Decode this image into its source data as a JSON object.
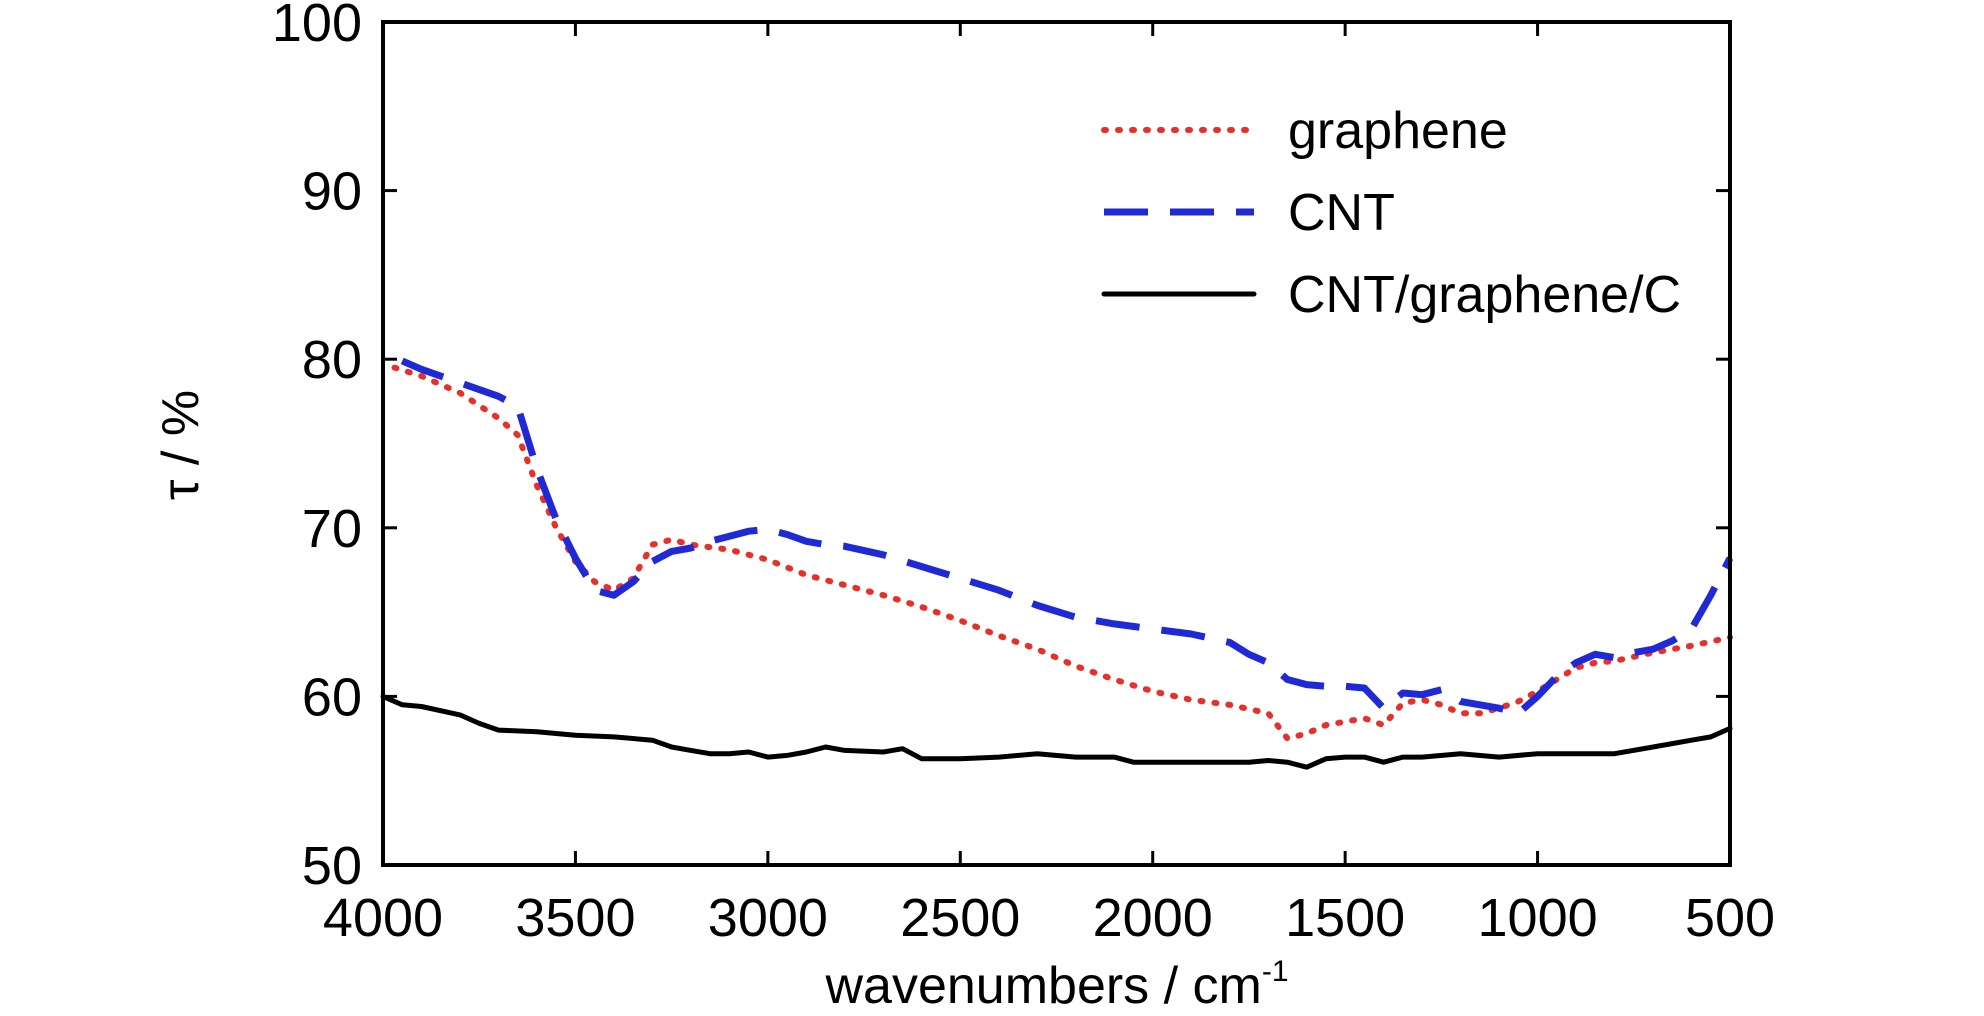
{
  "chart_data": {
    "type": "line",
    "title": "",
    "xlabel": "wavenumbers / cm",
    "xlabel_superscript": "-1",
    "ylabel": "τ / %",
    "xlim": [
      4000,
      500
    ],
    "ylim": [
      50,
      100
    ],
    "x_reversed": true,
    "x_ticks": [
      4000,
      3500,
      3000,
      2500,
      2000,
      1500,
      1000,
      500
    ],
    "y_ticks": [
      50,
      60,
      70,
      80,
      90,
      100
    ],
    "grid": false,
    "legend_position": "top-right",
    "series": [
      {
        "name": "graphene",
        "color": "#e8302a",
        "style": "dotted",
        "points": [
          [
            3970,
            79.5
          ],
          [
            3900,
            79.0
          ],
          [
            3800,
            78.0
          ],
          [
            3700,
            76.5
          ],
          [
            3650,
            75.5
          ],
          [
            3600,
            72.5
          ],
          [
            3550,
            70.0
          ],
          [
            3500,
            68.0
          ],
          [
            3450,
            66.8
          ],
          [
            3400,
            66.3
          ],
          [
            3350,
            67.0
          ],
          [
            3300,
            69.0
          ],
          [
            3250,
            69.3
          ],
          [
            3200,
            69.0
          ],
          [
            3100,
            68.7
          ],
          [
            3000,
            68.1
          ],
          [
            2900,
            67.2
          ],
          [
            2800,
            66.6
          ],
          [
            2700,
            66.0
          ],
          [
            2600,
            65.3
          ],
          [
            2500,
            64.5
          ],
          [
            2400,
            63.6
          ],
          [
            2300,
            62.8
          ],
          [
            2200,
            61.8
          ],
          [
            2100,
            61.0
          ],
          [
            2000,
            60.3
          ],
          [
            1900,
            59.8
          ],
          [
            1800,
            59.5
          ],
          [
            1700,
            59.0
          ],
          [
            1650,
            57.5
          ],
          [
            1600,
            57.8
          ],
          [
            1550,
            58.3
          ],
          [
            1450,
            58.7
          ],
          [
            1400,
            58.3
          ],
          [
            1350,
            59.6
          ],
          [
            1300,
            59.8
          ],
          [
            1250,
            59.5
          ],
          [
            1200,
            59.0
          ],
          [
            1150,
            59.0
          ],
          [
            1100,
            59.3
          ],
          [
            1050,
            59.7
          ],
          [
            1000,
            60.3
          ],
          [
            950,
            61.0
          ],
          [
            900,
            61.7
          ],
          [
            850,
            62.0
          ],
          [
            800,
            62.1
          ],
          [
            700,
            62.6
          ],
          [
            600,
            63.0
          ],
          [
            500,
            63.5
          ]
        ]
      },
      {
        "name": "CNT",
        "color": "#1f2ad6",
        "style": "dashed",
        "points": [
          [
            3950,
            79.9
          ],
          [
            3900,
            79.4
          ],
          [
            3800,
            78.6
          ],
          [
            3700,
            77.8
          ],
          [
            3650,
            77.2
          ],
          [
            3600,
            73.5
          ],
          [
            3550,
            70.5
          ],
          [
            3500,
            68.2
          ],
          [
            3450,
            66.3
          ],
          [
            3400,
            66.0
          ],
          [
            3350,
            66.8
          ],
          [
            3300,
            68.0
          ],
          [
            3250,
            68.6
          ],
          [
            3200,
            68.8
          ],
          [
            3150,
            69.2
          ],
          [
            3100,
            69.5
          ],
          [
            3050,
            69.8
          ],
          [
            3000,
            69.9
          ],
          [
            2950,
            69.6
          ],
          [
            2900,
            69.2
          ],
          [
            2850,
            69.0
          ],
          [
            2800,
            68.9
          ],
          [
            2700,
            68.4
          ],
          [
            2600,
            67.7
          ],
          [
            2500,
            67.0
          ],
          [
            2400,
            66.3
          ],
          [
            2300,
            65.4
          ],
          [
            2200,
            64.7
          ],
          [
            2100,
            64.3
          ],
          [
            2000,
            64.0
          ],
          [
            1900,
            63.7
          ],
          [
            1800,
            63.2
          ],
          [
            1750,
            62.5
          ],
          [
            1700,
            62.0
          ],
          [
            1650,
            61.0
          ],
          [
            1600,
            60.7
          ],
          [
            1550,
            60.6
          ],
          [
            1500,
            60.6
          ],
          [
            1450,
            60.5
          ],
          [
            1400,
            59.3
          ],
          [
            1350,
            60.2
          ],
          [
            1300,
            60.1
          ],
          [
            1250,
            60.4
          ],
          [
            1200,
            59.7
          ],
          [
            1150,
            59.5
          ],
          [
            1100,
            59.3
          ],
          [
            1050,
            59.0
          ],
          [
            1000,
            60.0
          ],
          [
            950,
            61.2
          ],
          [
            900,
            62.0
          ],
          [
            850,
            62.5
          ],
          [
            800,
            62.3
          ],
          [
            750,
            62.6
          ],
          [
            700,
            62.8
          ],
          [
            650,
            63.3
          ],
          [
            600,
            64.0
          ],
          [
            550,
            66.0
          ],
          [
            500,
            68.2
          ]
        ]
      },
      {
        "name": "CNT/graphene/C",
        "color": "#000000",
        "style": "solid",
        "points": [
          [
            4000,
            60.0
          ],
          [
            3950,
            59.5
          ],
          [
            3900,
            59.4
          ],
          [
            3800,
            58.9
          ],
          [
            3750,
            58.4
          ],
          [
            3700,
            58.0
          ],
          [
            3600,
            57.9
          ],
          [
            3500,
            57.7
          ],
          [
            3400,
            57.6
          ],
          [
            3300,
            57.4
          ],
          [
            3250,
            57.0
          ],
          [
            3200,
            56.8
          ],
          [
            3150,
            56.6
          ],
          [
            3100,
            56.6
          ],
          [
            3050,
            56.7
          ],
          [
            3000,
            56.4
          ],
          [
            2950,
            56.5
          ],
          [
            2900,
            56.7
          ],
          [
            2850,
            57.0
          ],
          [
            2800,
            56.8
          ],
          [
            2700,
            56.7
          ],
          [
            2650,
            56.9
          ],
          [
            2600,
            56.3
          ],
          [
            2500,
            56.3
          ],
          [
            2400,
            56.4
          ],
          [
            2300,
            56.6
          ],
          [
            2200,
            56.4
          ],
          [
            2100,
            56.4
          ],
          [
            2050,
            56.1
          ],
          [
            2000,
            56.1
          ],
          [
            1900,
            56.1
          ],
          [
            1800,
            56.1
          ],
          [
            1750,
            56.1
          ],
          [
            1700,
            56.2
          ],
          [
            1650,
            56.1
          ],
          [
            1600,
            55.8
          ],
          [
            1550,
            56.3
          ],
          [
            1500,
            56.4
          ],
          [
            1450,
            56.4
          ],
          [
            1400,
            56.1
          ],
          [
            1350,
            56.4
          ],
          [
            1300,
            56.4
          ],
          [
            1200,
            56.6
          ],
          [
            1100,
            56.4
          ],
          [
            1000,
            56.6
          ],
          [
            950,
            56.6
          ],
          [
            900,
            56.6
          ],
          [
            800,
            56.6
          ],
          [
            700,
            57.0
          ],
          [
            600,
            57.4
          ],
          [
            550,
            57.6
          ],
          [
            500,
            58.1
          ]
        ]
      }
    ]
  }
}
